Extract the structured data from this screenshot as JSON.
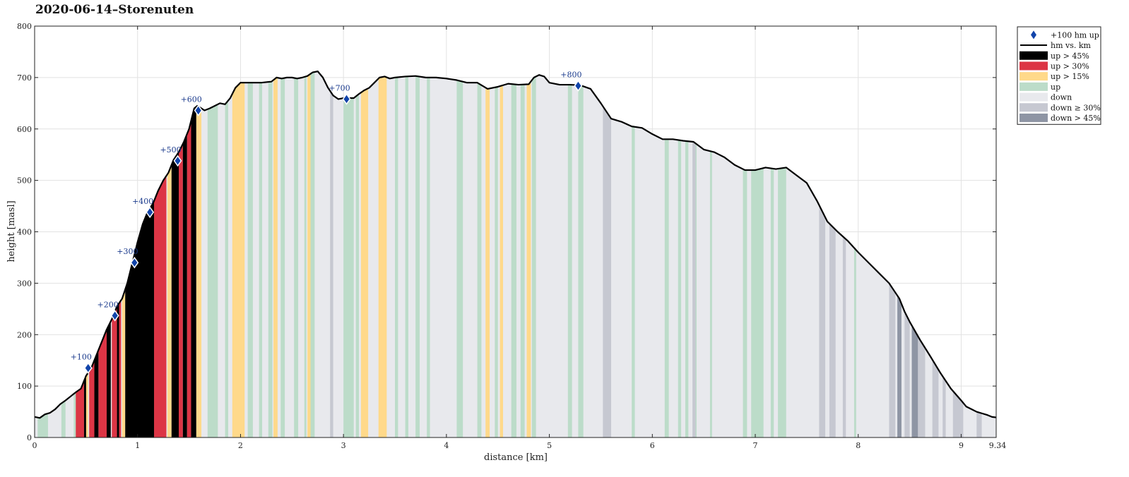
{
  "chart_data": {
    "type": "area",
    "title": "2020-06-14–Storenuten",
    "xlabel": "distance [km]",
    "ylabel": "height [masl]",
    "xlim": [
      0,
      9.34
    ],
    "ylim": [
      0,
      800
    ],
    "xticks": [
      "0",
      "1",
      "2",
      "3",
      "4",
      "5",
      "6",
      "7",
      "8",
      "9",
      "9.34"
    ],
    "xtick_values": [
      0,
      1,
      2,
      3,
      4,
      5,
      6,
      7,
      8,
      9,
      9.34
    ],
    "yticks": [
      "0",
      "100",
      "200",
      "300",
      "400",
      "500",
      "600",
      "700",
      "800"
    ],
    "ytick_values": [
      0,
      100,
      200,
      300,
      400,
      500,
      600,
      700,
      800
    ],
    "grid": true,
    "legend_position": "outside-top-right",
    "profile": {
      "name": "hm vs. km",
      "x": [
        0,
        0.05,
        0.1,
        0.15,
        0.2,
        0.25,
        0.3,
        0.35,
        0.4,
        0.45,
        0.5,
        0.55,
        0.6,
        0.65,
        0.7,
        0.75,
        0.8,
        0.85,
        0.9,
        0.95,
        1.0,
        1.05,
        1.1,
        1.15,
        1.2,
        1.25,
        1.3,
        1.35,
        1.4,
        1.45,
        1.5,
        1.55,
        1.58,
        1.62,
        1.65,
        1.7,
        1.75,
        1.8,
        1.85,
        1.9,
        1.95,
        2.0,
        2.05,
        2.1,
        2.2,
        2.3,
        2.35,
        2.4,
        2.45,
        2.5,
        2.55,
        2.6,
        2.65,
        2.7,
        2.75,
        2.8,
        2.85,
        2.9,
        2.95,
        3.0,
        3.05,
        3.1,
        3.15,
        3.2,
        3.25,
        3.3,
        3.35,
        3.4,
        3.45,
        3.5,
        3.6,
        3.7,
        3.8,
        3.9,
        4.0,
        4.1,
        4.2,
        4.3,
        4.4,
        4.5,
        4.6,
        4.7,
        4.8,
        4.85,
        4.9,
        4.95,
        5.0,
        5.1,
        5.2,
        5.3,
        5.4,
        5.5,
        5.6,
        5.7,
        5.8,
        5.9,
        6.0,
        6.1,
        6.2,
        6.3,
        6.4,
        6.5,
        6.6,
        6.7,
        6.8,
        6.9,
        7.0,
        7.1,
        7.2,
        7.3,
        7.4,
        7.5,
        7.6,
        7.7,
        7.8,
        7.9,
        8.0,
        8.1,
        8.2,
        8.3,
        8.35,
        8.4,
        8.45,
        8.5,
        8.6,
        8.7,
        8.8,
        8.9,
        9.0,
        9.05,
        9.1,
        9.15,
        9.2,
        9.25,
        9.3,
        9.34
      ],
      "y": [
        40,
        38,
        45,
        48,
        55,
        65,
        72,
        80,
        88,
        95,
        120,
        135,
        160,
        185,
        210,
        230,
        255,
        270,
        300,
        340,
        380,
        415,
        440,
        455,
        480,
        500,
        515,
        540,
        555,
        575,
        600,
        640,
        645,
        640,
        636,
        640,
        645,
        650,
        648,
        660,
        680,
        690,
        690,
        690,
        690,
        692,
        700,
        698,
        700,
        700,
        698,
        700,
        703,
        710,
        712,
        700,
        680,
        665,
        658,
        660,
        660,
        660,
        668,
        675,
        680,
        690,
        700,
        702,
        698,
        700,
        702,
        703,
        700,
        700,
        698,
        695,
        690,
        690,
        678,
        682,
        688,
        686,
        687,
        700,
        705,
        702,
        690,
        686,
        686,
        685,
        678,
        650,
        620,
        614,
        605,
        602,
        590,
        580,
        580,
        577,
        575,
        560,
        555,
        545,
        530,
        520,
        520,
        525,
        522,
        525,
        510,
        495,
        460,
        420,
        400,
        382,
        360,
        340,
        320,
        300,
        285,
        270,
        245,
        225,
        190,
        158,
        125,
        95,
        72,
        60,
        55,
        50,
        47,
        44,
        40,
        39
      ]
    },
    "markers": {
      "name": "+100 hm up",
      "labels": [
        "+100",
        "+200",
        "+300",
        "+400",
        "+500",
        "+600",
        "+700",
        "+800"
      ],
      "x": [
        0.52,
        0.78,
        0.97,
        1.12,
        1.39,
        1.59,
        3.03,
        5.28
      ],
      "y": [
        135,
        237,
        340,
        438,
        538,
        636,
        658,
        684
      ]
    },
    "segments": {
      "up": [
        [
          0.03,
          0.13
        ],
        [
          0.26,
          0.3
        ],
        [
          0.38,
          0.42
        ],
        [
          1.68,
          1.78
        ],
        [
          1.85,
          1.88
        ],
        [
          2.07,
          2.12
        ],
        [
          2.18,
          2.21
        ],
        [
          2.27,
          2.31
        ],
        [
          2.39,
          2.43
        ],
        [
          2.52,
          2.56
        ],
        [
          2.62,
          2.64
        ],
        [
          2.68,
          2.72
        ],
        [
          3.0,
          3.1
        ],
        [
          3.12,
          3.15
        ],
        [
          3.5,
          3.53
        ],
        [
          3.6,
          3.63
        ],
        [
          3.7,
          3.74
        ],
        [
          3.81,
          3.84
        ],
        [
          4.1,
          4.16
        ],
        [
          4.3,
          4.34
        ],
        [
          4.47,
          4.5
        ],
        [
          4.63,
          4.68
        ],
        [
          4.72,
          4.76
        ],
        [
          4.83,
          4.87
        ],
        [
          5.18,
          5.22
        ],
        [
          5.28,
          5.33
        ],
        [
          5.8,
          5.83
        ],
        [
          6.12,
          6.16
        ],
        [
          6.25,
          6.28
        ],
        [
          6.32,
          6.35
        ],
        [
          6.4,
          6.43
        ],
        [
          6.56,
          6.58
        ],
        [
          6.88,
          6.92
        ],
        [
          6.96,
          7.08
        ],
        [
          7.15,
          7.18
        ],
        [
          7.22,
          7.3
        ],
        [
          7.96,
          7.98
        ]
      ],
      "up_gt_15": [
        [
          0.48,
          0.52
        ],
        [
          0.85,
          0.88
        ],
        [
          1.29,
          1.33
        ],
        [
          1.57,
          1.62
        ],
        [
          1.92,
          2.04
        ],
        [
          2.32,
          2.36
        ],
        [
          2.65,
          2.68
        ],
        [
          3.17,
          3.24
        ],
        [
          3.34,
          3.42
        ],
        [
          4.38,
          4.42
        ],
        [
          4.52,
          4.55
        ],
        [
          4.78,
          4.82
        ]
      ],
      "up_gt_30": [
        [
          0.4,
          0.48
        ],
        [
          0.53,
          0.58
        ],
        [
          0.62,
          0.7
        ],
        [
          0.75,
          0.8
        ],
        [
          0.82,
          0.84
        ],
        [
          1.16,
          1.28
        ],
        [
          1.4,
          1.44
        ],
        [
          1.48,
          1.52
        ]
      ],
      "up_gt_45": [
        [
          0.48,
          0.5
        ],
        [
          0.58,
          0.62
        ],
        [
          0.7,
          0.74
        ],
        [
          0.8,
          0.82
        ],
        [
          0.88,
          1.16
        ],
        [
          1.33,
          1.4
        ],
        [
          1.44,
          1.48
        ],
        [
          1.52,
          1.57
        ]
      ],
      "down_ge_30": [
        [
          2.87,
          2.9
        ],
        [
          5.52,
          5.6
        ],
        [
          6.39,
          6.42
        ],
        [
          7.62,
          7.68
        ],
        [
          7.72,
          7.78
        ],
        [
          7.85,
          7.88
        ],
        [
          8.3,
          8.36
        ],
        [
          8.45,
          8.5
        ],
        [
          8.58,
          8.65
        ],
        [
          8.72,
          8.78
        ],
        [
          8.82,
          8.85
        ],
        [
          8.92,
          9.02
        ],
        [
          9.15,
          9.2
        ]
      ],
      "down_gt_45": [
        [
          8.38,
          8.42
        ],
        [
          8.52,
          8.58
        ]
      ]
    },
    "legend": [
      {
        "label": "+100 hm up",
        "type": "marker",
        "color": "#1144aa"
      },
      {
        "label": "hm vs. km",
        "type": "line",
        "color": "#000000"
      },
      {
        "label": "up > 45%",
        "type": "patch",
        "color": "#000000"
      },
      {
        "label": "up > 30%",
        "type": "patch",
        "color": "#dc3545"
      },
      {
        "label": "up > 15%",
        "type": "patch",
        "color": "#ffd98a"
      },
      {
        "label": "up",
        "type": "patch",
        "color": "#bcdcc9"
      },
      {
        "label": "down",
        "type": "patch",
        "color": "#e8e9ed"
      },
      {
        "label": "down ≥ 30%",
        "type": "patch",
        "color": "#c6c8d1"
      },
      {
        "label": "down > 45%",
        "type": "patch",
        "color": "#8e95a4"
      }
    ],
    "colors": {
      "down": "#e8e9ed",
      "up": "#bcdcc9",
      "up_gt_15": "#ffd98a",
      "up_gt_30": "#dc3545",
      "up_gt_45": "#000000",
      "down_ge_30": "#c6c8d1",
      "down_gt_45": "#8e95a4",
      "marker": "#1144aa"
    }
  }
}
